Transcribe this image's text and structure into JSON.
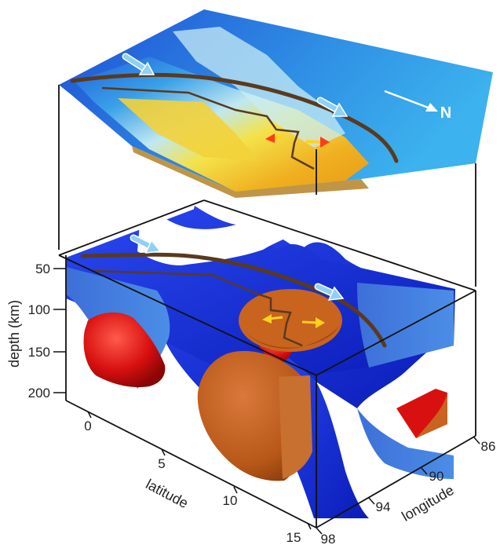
{
  "figure": {
    "north_label": "N",
    "colors": {
      "anomaly_slow": "#1a2fe0",
      "anomaly_slow_light": "#3a7ee8",
      "anomaly_fast": "#e01010",
      "plume": "#c8641e",
      "fault_trace": "#5a3a1e",
      "plate_arrow": "#8fd0f5",
      "spreading_arrow": "#ffd21e"
    }
  },
  "axes": {
    "depth": {
      "title": "depth (km)",
      "ticks": [
        "50",
        "100",
        "150",
        "200"
      ]
    },
    "latitude": {
      "title": "latitude",
      "ticks": [
        "0",
        "5",
        "10",
        "15"
      ]
    },
    "longitude": {
      "title": "longitude",
      "ticks": [
        "98",
        "94",
        "90",
        "86"
      ]
    }
  }
}
